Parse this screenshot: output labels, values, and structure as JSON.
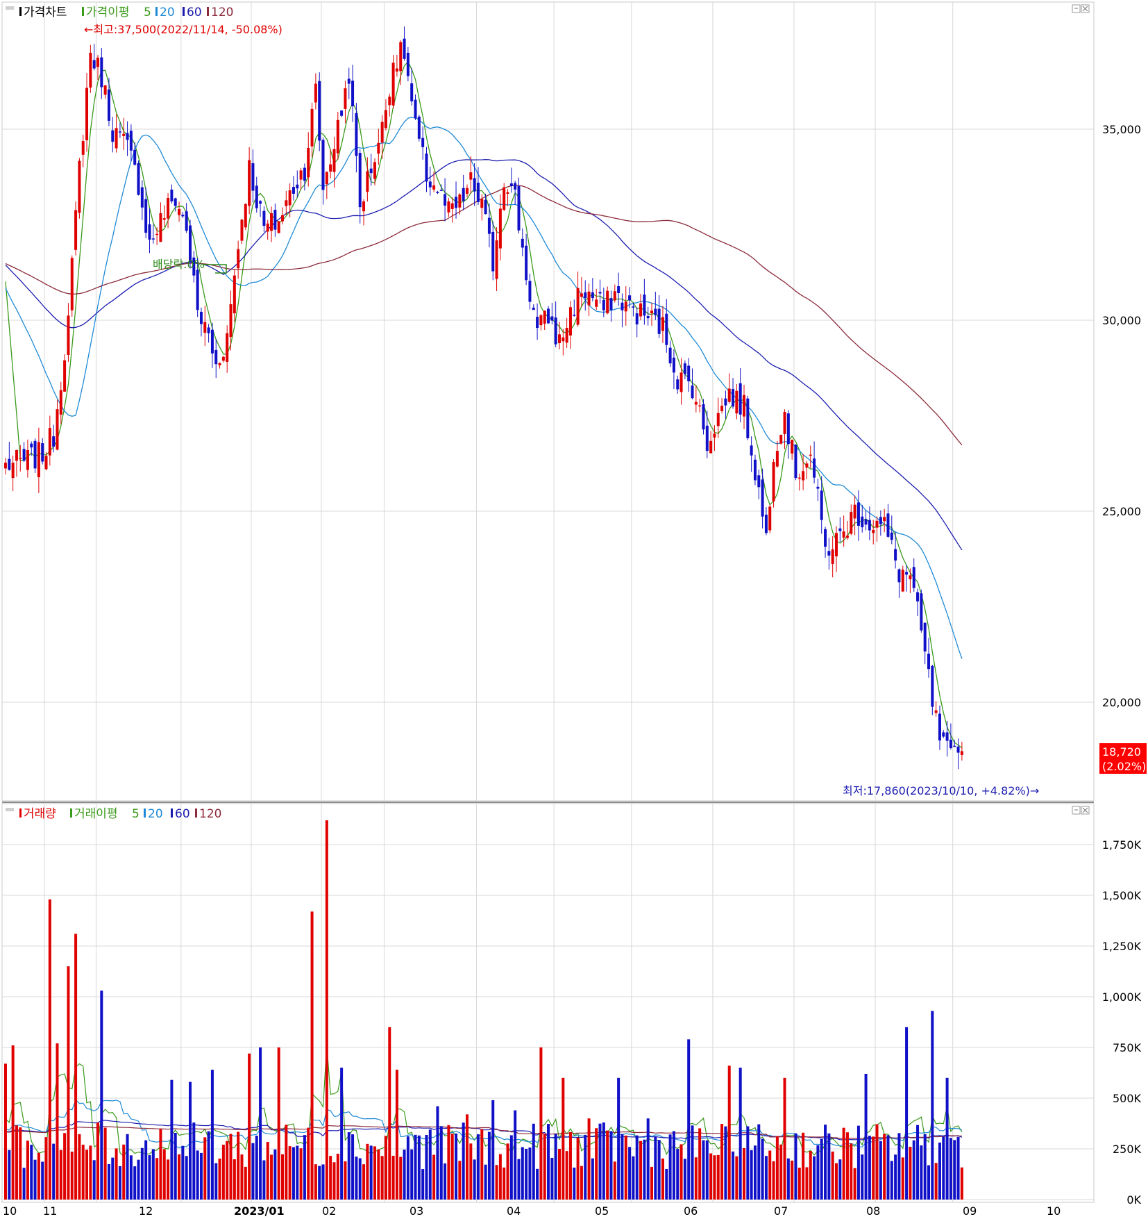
{
  "price_panel": {
    "legend": {
      "chart_name": "가격차트",
      "ma_label": "가격이평",
      "periods": [
        "5",
        "20",
        "60",
        "120"
      ]
    },
    "high_annotation": "←최고:37,500(2022/11/14, -50.08%)",
    "low_annotation": "최저:17,860(2023/10/10, +4.82%)→",
    "dividend_annotation": "배당락:0%",
    "current_price": "18,720",
    "current_change": "(2.02%)"
  },
  "volume_panel": {
    "legend": {
      "chart_name": "거래량",
      "ma_label": "거래이평",
      "periods": [
        "5",
        "20",
        "60",
        "120"
      ]
    }
  },
  "x_axis_labels": [
    "10",
    "11",
    "12",
    "2023/01",
    "02",
    "03",
    "04",
    "05",
    "06",
    "07",
    "08",
    "09",
    "10"
  ],
  "colors": {
    "up": "#e00000",
    "down": "#1010c8",
    "ma5": "#3a9a1a",
    "ma20": "#1e8ad6",
    "ma60": "#1c1cb0",
    "ma120": "#8b2a3a",
    "grid": "#d8d8d8",
    "badge": "#ff0000"
  },
  "chart_data": [
    {
      "type": "candlestick",
      "x_range": [
        "2022/10",
        "2023/10"
      ],
      "ylim": [
        17500,
        38500
      ],
      "y_ticks": [
        "20,000",
        "25,000",
        "30,000",
        "35,000"
      ],
      "y_tick_values": [
        20000,
        25000,
        30000,
        35000
      ],
      "x_months": [
        "10",
        "11",
        "12",
        "2023/01",
        "02",
        "03",
        "04",
        "05",
        "06",
        "07",
        "08",
        "09",
        "10"
      ],
      "close_anchors": [
        [
          0,
          26200
        ],
        [
          5,
          26300
        ],
        [
          10,
          26500
        ],
        [
          13,
          27000
        ],
        [
          17,
          30000
        ],
        [
          20,
          34000
        ],
        [
          23,
          37000
        ],
        [
          26,
          36400
        ],
        [
          29,
          35000
        ],
        [
          33,
          34500
        ],
        [
          36,
          33600
        ],
        [
          39,
          32000
        ],
        [
          43,
          32800
        ],
        [
          46,
          33200
        ],
        [
          49,
          32400
        ],
        [
          52,
          30200
        ],
        [
          55,
          29600
        ],
        [
          57,
          28800
        ],
        [
          60,
          29600
        ],
        [
          63,
          32000
        ],
        [
          66,
          34000
        ],
        [
          70,
          32400
        ],
        [
          74,
          32600
        ],
        [
          78,
          33500
        ],
        [
          81,
          34000
        ],
        [
          84,
          36000
        ],
        [
          86,
          33500
        ],
        [
          90,
          35000
        ],
        [
          93,
          36500
        ],
        [
          96,
          33000
        ],
        [
          99,
          34000
        ],
        [
          102,
          35000
        ],
        [
          105,
          36800
        ],
        [
          108,
          37000
        ],
        [
          111,
          35000
        ],
        [
          114,
          33800
        ],
        [
          117,
          33400
        ],
        [
          120,
          32800
        ],
        [
          123,
          33000
        ],
        [
          126,
          33600
        ],
        [
          129,
          33000
        ],
        [
          132,
          31500
        ],
        [
          135,
          33800
        ],
        [
          138,
          33200
        ],
        [
          141,
          31200
        ],
        [
          144,
          29700
        ],
        [
          147,
          30100
        ],
        [
          150,
          29400
        ],
        [
          153,
          30200
        ],
        [
          156,
          30800
        ],
        [
          159,
          30600
        ],
        [
          162,
          30300
        ],
        [
          165,
          30700
        ],
        [
          168,
          30400
        ],
        [
          171,
          30200
        ],
        [
          174,
          30100
        ],
        [
          178,
          29800
        ],
        [
          182,
          28500
        ],
        [
          186,
          28300
        ],
        [
          190,
          26800
        ],
        [
          193,
          27500
        ],
        [
          196,
          28100
        ],
        [
          200,
          27700
        ],
        [
          203,
          26100
        ],
        [
          206,
          24300
        ],
        [
          208,
          26600
        ],
        [
          211,
          27600
        ],
        [
          214,
          26000
        ],
        [
          218,
          26500
        ],
        [
          222,
          24000
        ],
        [
          226,
          24300
        ],
        [
          230,
          25000
        ],
        [
          234,
          24700
        ],
        [
          238,
          24600
        ],
        [
          242,
          23400
        ],
        [
          245,
          23300
        ],
        [
          248,
          21800
        ],
        [
          251,
          20000
        ],
        [
          253,
          19000
        ],
        [
          256,
          18500
        ],
        [
          259,
          18720
        ]
      ],
      "volume_ylim": [
        0,
        1900000
      ],
      "volume_ticks": [
        "0K",
        "250K",
        "500K",
        "750K",
        "1,000K",
        "1,250K",
        "1,500K",
        "1,750K"
      ],
      "volume_tick_values": [
        0,
        250000,
        500000,
        750000,
        1000000,
        1250000,
        1500000,
        1750000
      ],
      "volume_spikes": [
        [
          0,
          670000
        ],
        [
          2,
          760000
        ],
        [
          12,
          1480000
        ],
        [
          14,
          770000
        ],
        [
          17,
          1150000
        ],
        [
          19,
          1310000
        ],
        [
          26,
          1030000
        ],
        [
          45,
          590000
        ],
        [
          50,
          580000
        ],
        [
          56,
          640000
        ],
        [
          66,
          720000
        ],
        [
          69,
          750000
        ],
        [
          74,
          750000
        ],
        [
          83,
          1420000
        ],
        [
          87,
          1870000
        ],
        [
          91,
          650000
        ],
        [
          104,
          850000
        ],
        [
          106,
          640000
        ],
        [
          117,
          460000
        ],
        [
          125,
          420000
        ],
        [
          132,
          490000
        ],
        [
          138,
          440000
        ],
        [
          145,
          750000
        ],
        [
          151,
          600000
        ],
        [
          158,
          400000
        ],
        [
          166,
          600000
        ],
        [
          174,
          400000
        ],
        [
          185,
          790000
        ],
        [
          196,
          660000
        ],
        [
          199,
          650000
        ],
        [
          211,
          600000
        ],
        [
          233,
          620000
        ],
        [
          244,
          850000
        ],
        [
          251,
          930000
        ],
        [
          255,
          600000
        ]
      ]
    }
  ]
}
